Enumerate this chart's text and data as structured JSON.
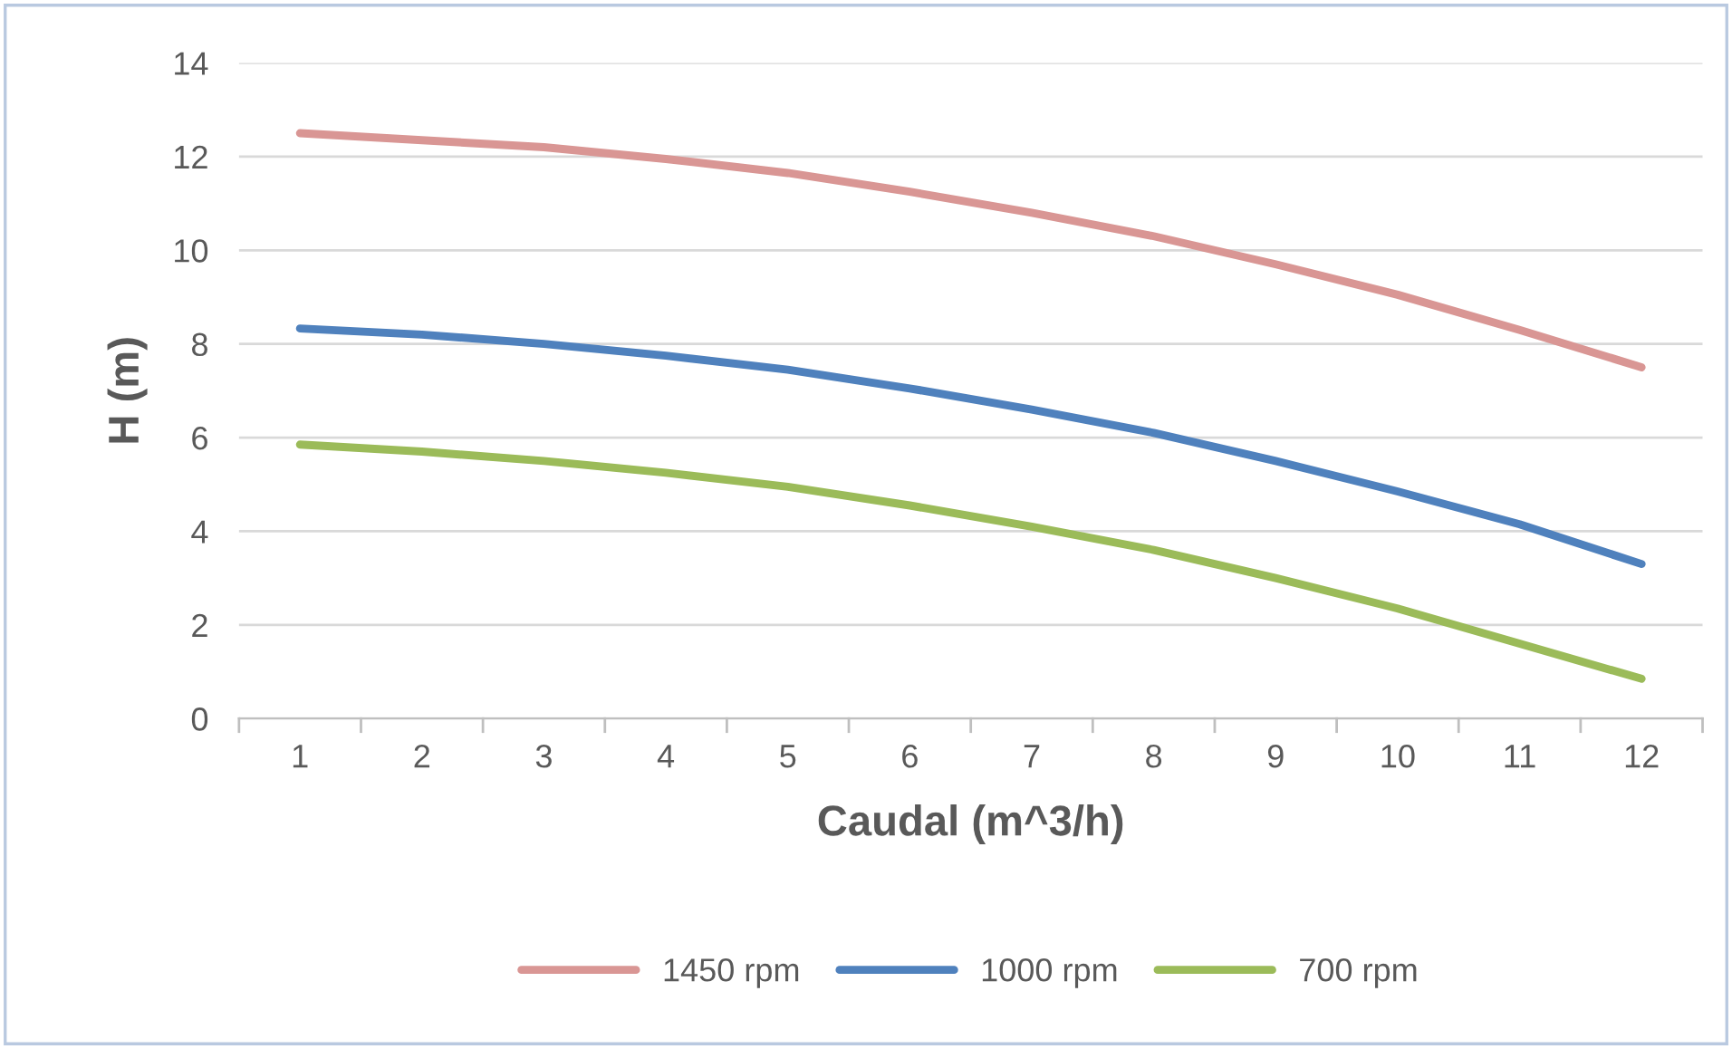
{
  "chart_data": {
    "type": "line",
    "xlabel": "Caudal (m^3/h)",
    "ylabel": "H (m)",
    "categories": [
      "1",
      "2",
      "3",
      "4",
      "5",
      "6",
      "7",
      "8",
      "9",
      "10",
      "11",
      "12"
    ],
    "ylim": [
      0,
      14
    ],
    "yticks": [
      0,
      2,
      4,
      6,
      8,
      10,
      12,
      14
    ],
    "grid": "y",
    "legend": "bottom",
    "marker": "none",
    "line_style": "solid",
    "series": [
      {
        "name": "1450 rpm",
        "color": "#d99694",
        "values": [
          12.5,
          12.35,
          12.2,
          11.95,
          11.65,
          11.25,
          10.8,
          10.3,
          9.7,
          9.05,
          8.3,
          7.5
        ]
      },
      {
        "name": "1000 rpm",
        "color": "#4f81bd",
        "values": [
          8.33,
          8.2,
          8.0,
          7.75,
          7.45,
          7.05,
          6.6,
          6.1,
          5.5,
          4.85,
          4.15,
          3.3
        ]
      },
      {
        "name": "700 rpm",
        "color": "#9bbb59",
        "values": [
          5.85,
          5.7,
          5.5,
          5.25,
          4.95,
          4.55,
          4.1,
          3.6,
          3.0,
          2.35,
          1.6,
          0.85
        ]
      }
    ]
  }
}
